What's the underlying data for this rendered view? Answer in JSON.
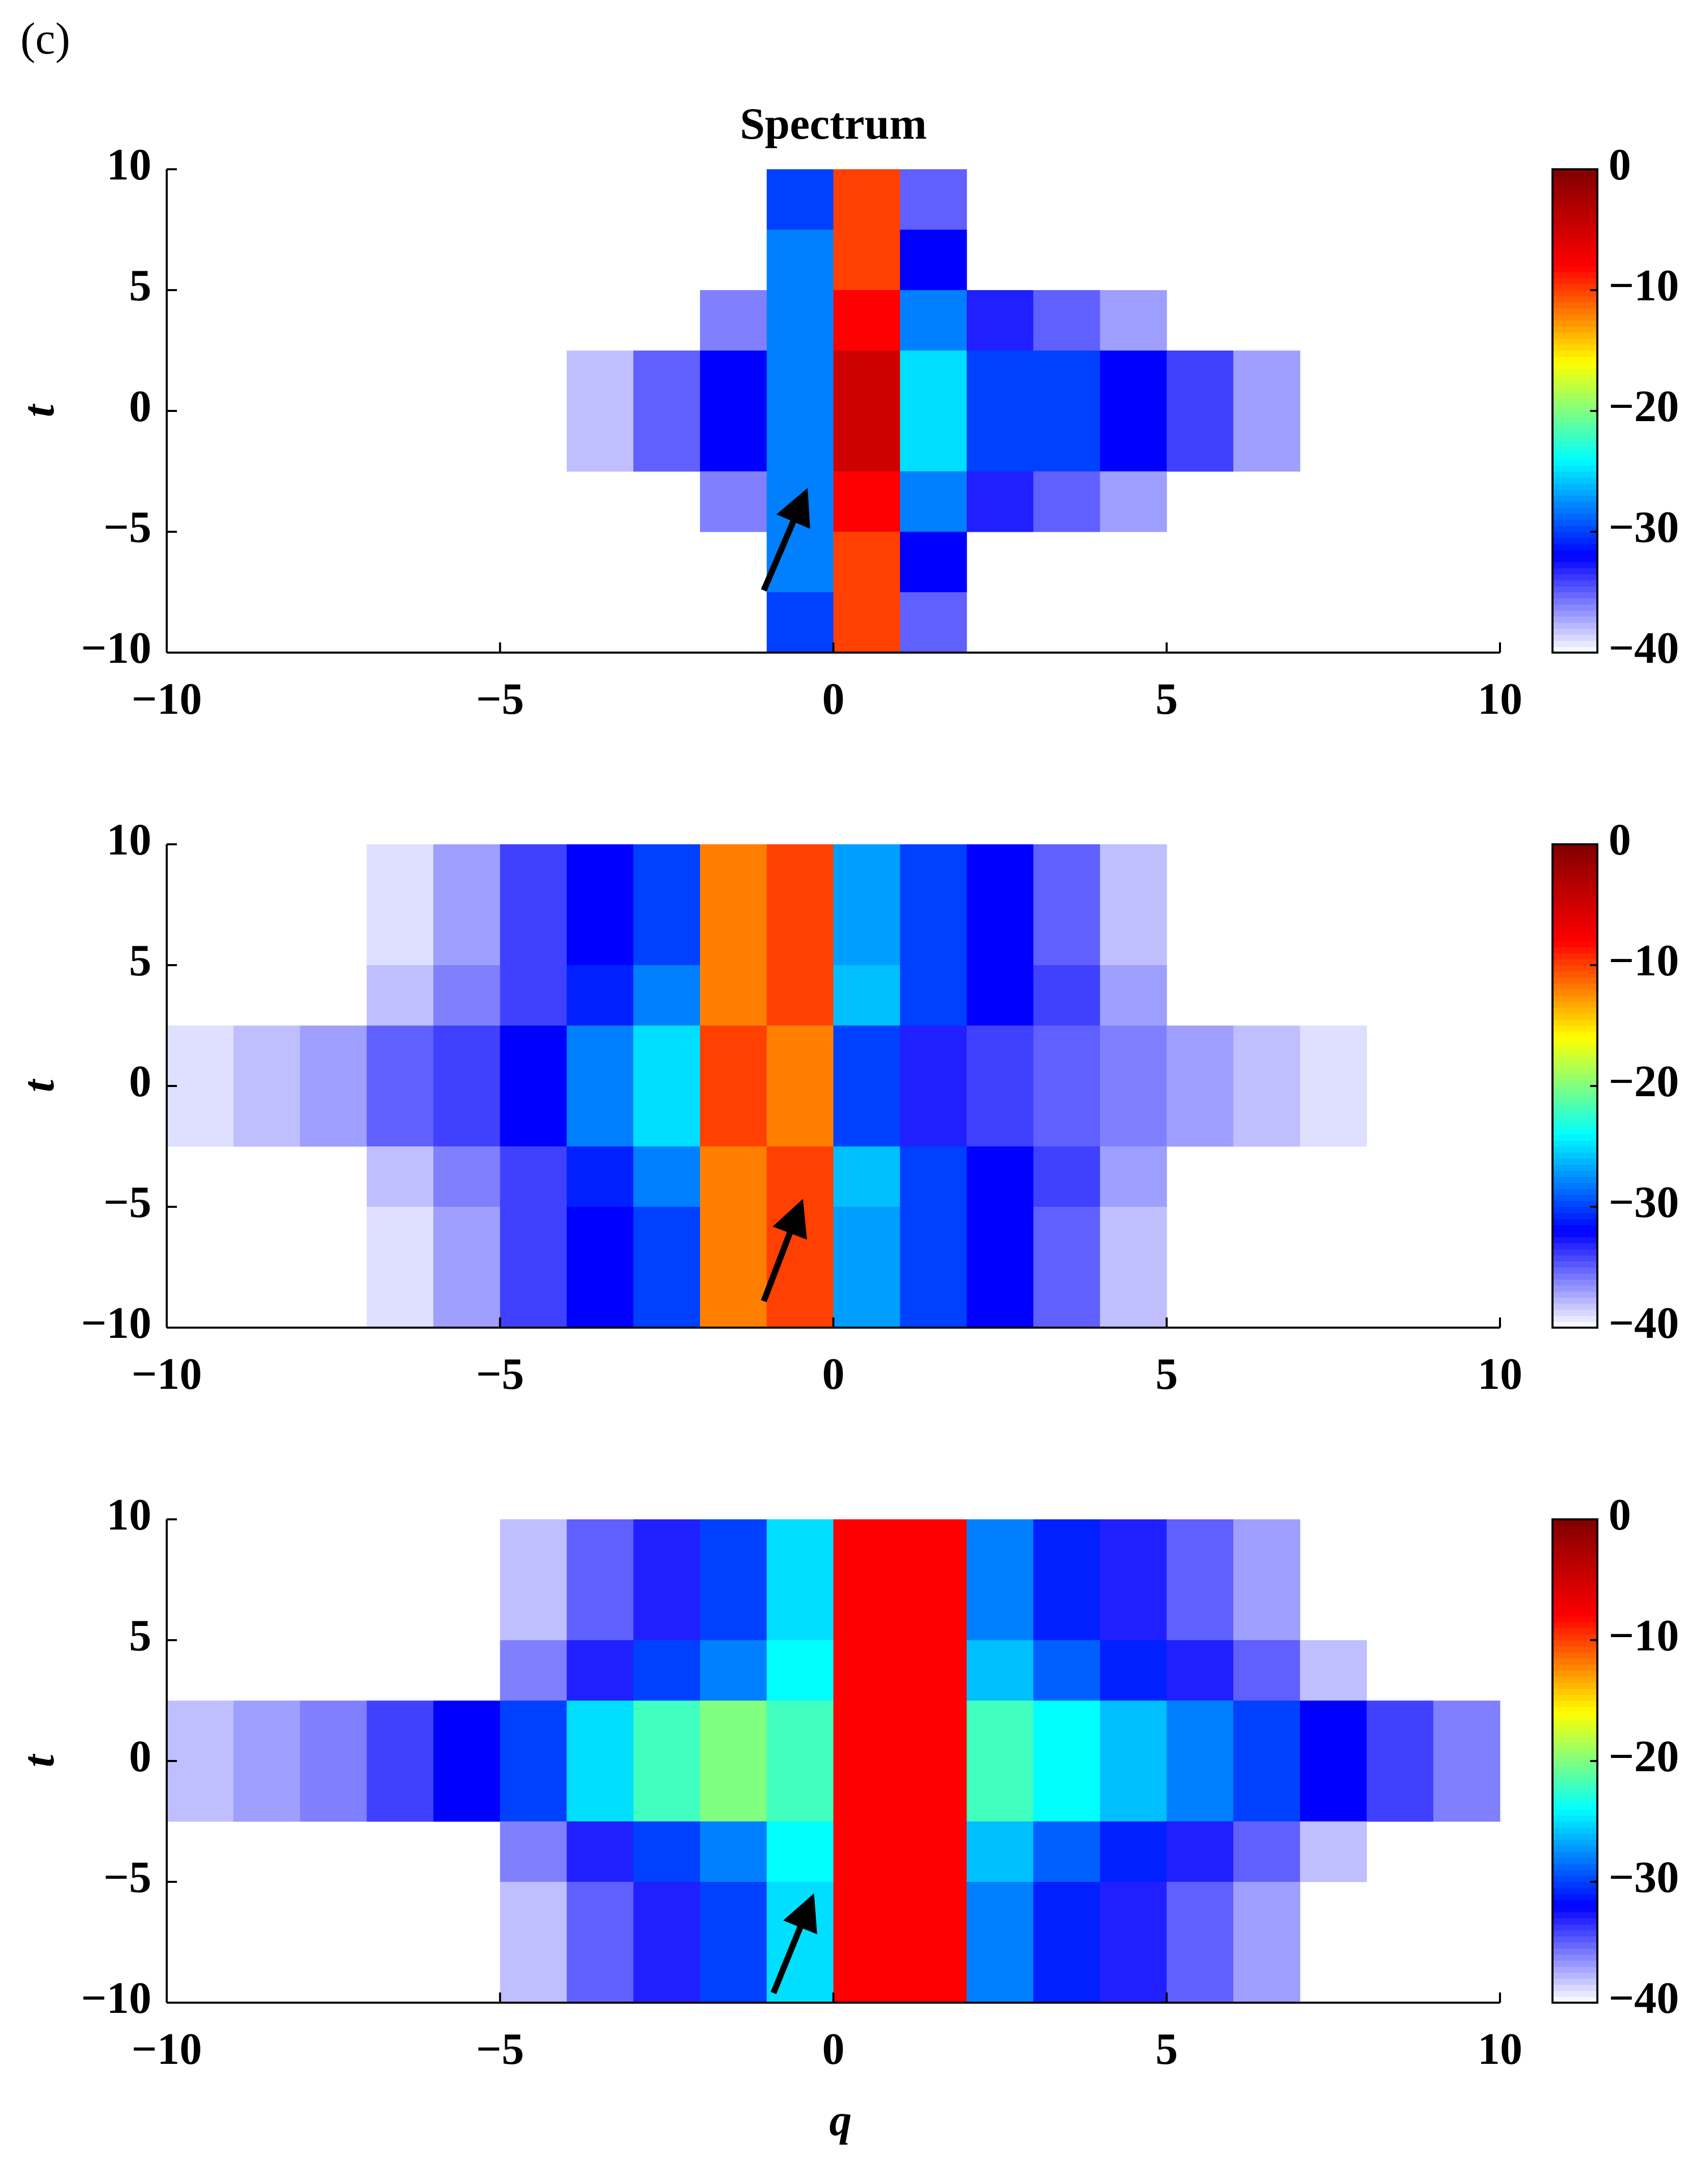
{
  "panel_label": "(c)",
  "chart_data": [
    {
      "type": "heatmap",
      "title": "Spectrum",
      "ylabel": "t",
      "x": [
        -9.5,
        -8.5,
        -7.5,
        -6.5,
        -5.5,
        -4.5,
        -3.5,
        -2.5,
        -1.5,
        -0.5,
        0.5,
        1.5,
        2.5,
        3.5,
        4.5,
        5.5,
        6.5,
        7.5,
        8.5,
        9.5
      ],
      "y": [
        8.75,
        6.25,
        3.75,
        1.25,
        -1.25,
        -3.75,
        -6.25,
        -8.75
      ],
      "z": [
        [
          null,
          null,
          null,
          null,
          null,
          null,
          null,
          null,
          null,
          -30,
          -10,
          -35,
          null,
          null,
          null,
          null,
          null,
          null,
          null,
          null
        ],
        [
          null,
          null,
          null,
          null,
          null,
          null,
          null,
          null,
          null,
          -28,
          -10,
          -32,
          null,
          null,
          null,
          null,
          null,
          null,
          null,
          null
        ],
        [
          null,
          null,
          null,
          null,
          null,
          null,
          null,
          null,
          -36,
          -28,
          -8,
          -28,
          -33,
          -35,
          -37,
          null,
          null,
          null,
          null,
          null
        ],
        [
          null,
          null,
          null,
          null,
          null,
          null,
          -38,
          -35,
          -32,
          -28,
          -5,
          -25,
          -30,
          -30,
          -32,
          -34,
          -37,
          null,
          null,
          null
        ],
        [
          null,
          null,
          null,
          null,
          null,
          null,
          -38,
          -35,
          -32,
          -28,
          -5,
          -25,
          -30,
          -30,
          -32,
          -34,
          -37,
          null,
          null,
          null
        ],
        [
          null,
          null,
          null,
          null,
          null,
          null,
          null,
          null,
          -36,
          -28,
          -8,
          -28,
          -33,
          -35,
          -37,
          null,
          null,
          null,
          null,
          null
        ],
        [
          null,
          null,
          null,
          null,
          null,
          null,
          null,
          null,
          null,
          -28,
          -10,
          -32,
          null,
          null,
          null,
          null,
          null,
          null,
          null,
          null
        ],
        [
          null,
          null,
          null,
          null,
          null,
          null,
          null,
          null,
          null,
          -30,
          -10,
          -35,
          null,
          null,
          null,
          null,
          null,
          null,
          null,
          null
        ]
      ],
      "xlim": [
        -10,
        10
      ],
      "ylim": [
        -10,
        10
      ],
      "xticks": [
        {
          "value": -10,
          "label": "−10"
        },
        {
          "value": -5,
          "label": "−5"
        },
        0,
        5,
        10
      ],
      "yticks": [
        {
          "value": -10,
          "label": "−10"
        },
        {
          "value": -5,
          "label": "−5"
        },
        0,
        5,
        10
      ],
      "clim": [
        -40,
        0
      ],
      "cticks": [
        {
          "value": -40,
          "label": "−40"
        },
        {
          "value": -30,
          "label": "−30"
        },
        {
          "value": -20,
          "label": "−20"
        },
        {
          "value": -10,
          "label": "−10"
        },
        0
      ],
      "colormap": [
        "#ffffff",
        "#0000ff",
        "#00ffff",
        "#ffff00",
        "#ff0000",
        "#800000"
      ]
    },
    {
      "type": "heatmap",
      "ylabel": "t",
      "x": [
        -9.5,
        -8.5,
        -7.5,
        -6.5,
        -5.5,
        -4.5,
        -3.5,
        -2.5,
        -1.5,
        -0.5,
        0.5,
        1.5,
        2.5,
        3.5,
        4.5,
        5.5,
        6.5,
        7.5,
        8.5,
        9.5
      ],
      "y": [
        8.75,
        6.25,
        3.75,
        1.25,
        -1.25,
        -3.75,
        -6.25,
        -8.75
      ],
      "z": [
        [
          null,
          null,
          null,
          -39,
          -37,
          -34,
          -32,
          -30,
          -12,
          -10,
          -27,
          -30,
          -32,
          -35,
          -38,
          null,
          null,
          null,
          null,
          null
        ],
        [
          null,
          null,
          null,
          -39,
          -37,
          -34,
          -32,
          -30,
          -12,
          -10,
          -27,
          -30,
          -32,
          -35,
          -38,
          null,
          null,
          null,
          null,
          null
        ],
        [
          null,
          null,
          null,
          -38,
          -36,
          -34,
          -31,
          -28,
          -12,
          -10,
          -26,
          -30,
          -32,
          -34,
          -37,
          null,
          null,
          null,
          null,
          null
        ],
        [
          -39,
          -38,
          -37,
          -35,
          -34,
          -32,
          -28,
          -25,
          -10,
          -12,
          -30,
          -33,
          -34,
          -35,
          -36,
          -37,
          -38,
          -39,
          null,
          null
        ],
        [
          -39,
          -38,
          -37,
          -35,
          -34,
          -32,
          -28,
          -25,
          -10,
          -12,
          -30,
          -33,
          -34,
          -35,
          -36,
          -37,
          -38,
          -39,
          null,
          null
        ],
        [
          null,
          null,
          null,
          -38,
          -36,
          -34,
          -31,
          -28,
          -12,
          -10,
          -26,
          -30,
          -32,
          -34,
          -37,
          null,
          null,
          null,
          null,
          null
        ],
        [
          null,
          null,
          null,
          -39,
          -37,
          -34,
          -32,
          -30,
          -12,
          -10,
          -27,
          -30,
          -32,
          -35,
          -38,
          null,
          null,
          null,
          null,
          null
        ],
        [
          null,
          null,
          null,
          -39,
          -37,
          -34,
          -32,
          -30,
          -12,
          -10,
          -27,
          -30,
          -32,
          -35,
          -38,
          null,
          null,
          null,
          null,
          null
        ]
      ],
      "xlim": [
        -10,
        10
      ],
      "ylim": [
        -10,
        10
      ],
      "xticks": [
        {
          "value": -10,
          "label": "−10"
        },
        {
          "value": -5,
          "label": "−5"
        },
        0,
        5,
        10
      ],
      "yticks": [
        {
          "value": -10,
          "label": "−10"
        },
        {
          "value": -5,
          "label": "−5"
        },
        0,
        5,
        10
      ],
      "clim": [
        -40,
        0
      ],
      "cticks": [
        {
          "value": -40,
          "label": "−40"
        },
        {
          "value": -30,
          "label": "−30"
        },
        {
          "value": -20,
          "label": "−20"
        },
        {
          "value": -10,
          "label": "−10"
        },
        0
      ],
      "colormap": [
        "#ffffff",
        "#0000ff",
        "#00ffff",
        "#ffff00",
        "#ff0000",
        "#800000"
      ]
    },
    {
      "type": "heatmap",
      "ylabel": "t",
      "xlabel": "q",
      "x": [
        -9.5,
        -8.5,
        -7.5,
        -6.5,
        -5.5,
        -4.5,
        -3.5,
        -2.5,
        -1.5,
        -0.5,
        0.5,
        1.5,
        2.5,
        3.5,
        4.5,
        5.5,
        6.5,
        7.5,
        8.5,
        9.5
      ],
      "y": [
        8.75,
        6.25,
        3.75,
        1.25,
        -1.25,
        -3.75,
        -6.25,
        -8.75
      ],
      "z": [
        [
          null,
          null,
          null,
          null,
          null,
          -38,
          -35,
          -33,
          -30,
          -25,
          -8,
          -8,
          -28,
          -31,
          -33,
          -35,
          -37,
          null,
          null,
          null
        ],
        [
          null,
          null,
          null,
          null,
          null,
          -38,
          -35,
          -33,
          -30,
          -25,
          -8,
          -8,
          -28,
          -31,
          -33,
          -35,
          -37,
          null,
          null,
          null
        ],
        [
          null,
          null,
          null,
          null,
          null,
          -36,
          -33,
          -30,
          -28,
          -24,
          -8,
          -8,
          -26,
          -29,
          -31,
          -33,
          -35,
          -38,
          null,
          null
        ],
        [
          -38,
          -37,
          -36,
          -34,
          -32,
          -30,
          -25,
          -22,
          -20,
          -22,
          -8,
          -8,
          -22,
          -24,
          -26,
          -28,
          -30,
          -32,
          -34,
          -36
        ],
        [
          -38,
          -37,
          -36,
          -34,
          -32,
          -30,
          -25,
          -22,
          -20,
          -22,
          -8,
          -8,
          -22,
          -24,
          -26,
          -28,
          -30,
          -32,
          -34,
          -36
        ],
        [
          null,
          null,
          null,
          null,
          null,
          -36,
          -33,
          -30,
          -28,
          -24,
          -8,
          -8,
          -26,
          -29,
          -31,
          -33,
          -35,
          -38,
          null,
          null
        ],
        [
          null,
          null,
          null,
          null,
          null,
          -38,
          -35,
          -33,
          -30,
          -25,
          -8,
          -8,
          -28,
          -31,
          -33,
          -35,
          -37,
          null,
          null,
          null
        ],
        [
          null,
          null,
          null,
          null,
          null,
          -38,
          -35,
          -33,
          -30,
          -25,
          -8,
          -8,
          -28,
          -31,
          -33,
          -35,
          -37,
          null,
          null,
          null
        ]
      ],
      "xlim": [
        -10,
        10
      ],
      "ylim": [
        -10,
        10
      ],
      "xticks": [
        {
          "value": -10,
          "label": "−10"
        },
        {
          "value": -5,
          "label": "−5"
        },
        0,
        5,
        10
      ],
      "yticks": [
        {
          "value": -10,
          "label": "−10"
        },
        {
          "value": -5,
          "label": "−5"
        },
        0,
        5,
        10
      ],
      "clim": [
        -40,
        0
      ],
      "cticks": [
        {
          "value": -40,
          "label": "−40"
        },
        {
          "value": -30,
          "label": "−30"
        },
        {
          "value": -20,
          "label": "−20"
        },
        {
          "value": -10,
          "label": "−10"
        },
        0
      ],
      "colormap": [
        "#ffffff",
        "#0000ff",
        "#00ffff",
        "#ffff00",
        "#ff0000",
        "#800000"
      ]
    }
  ]
}
